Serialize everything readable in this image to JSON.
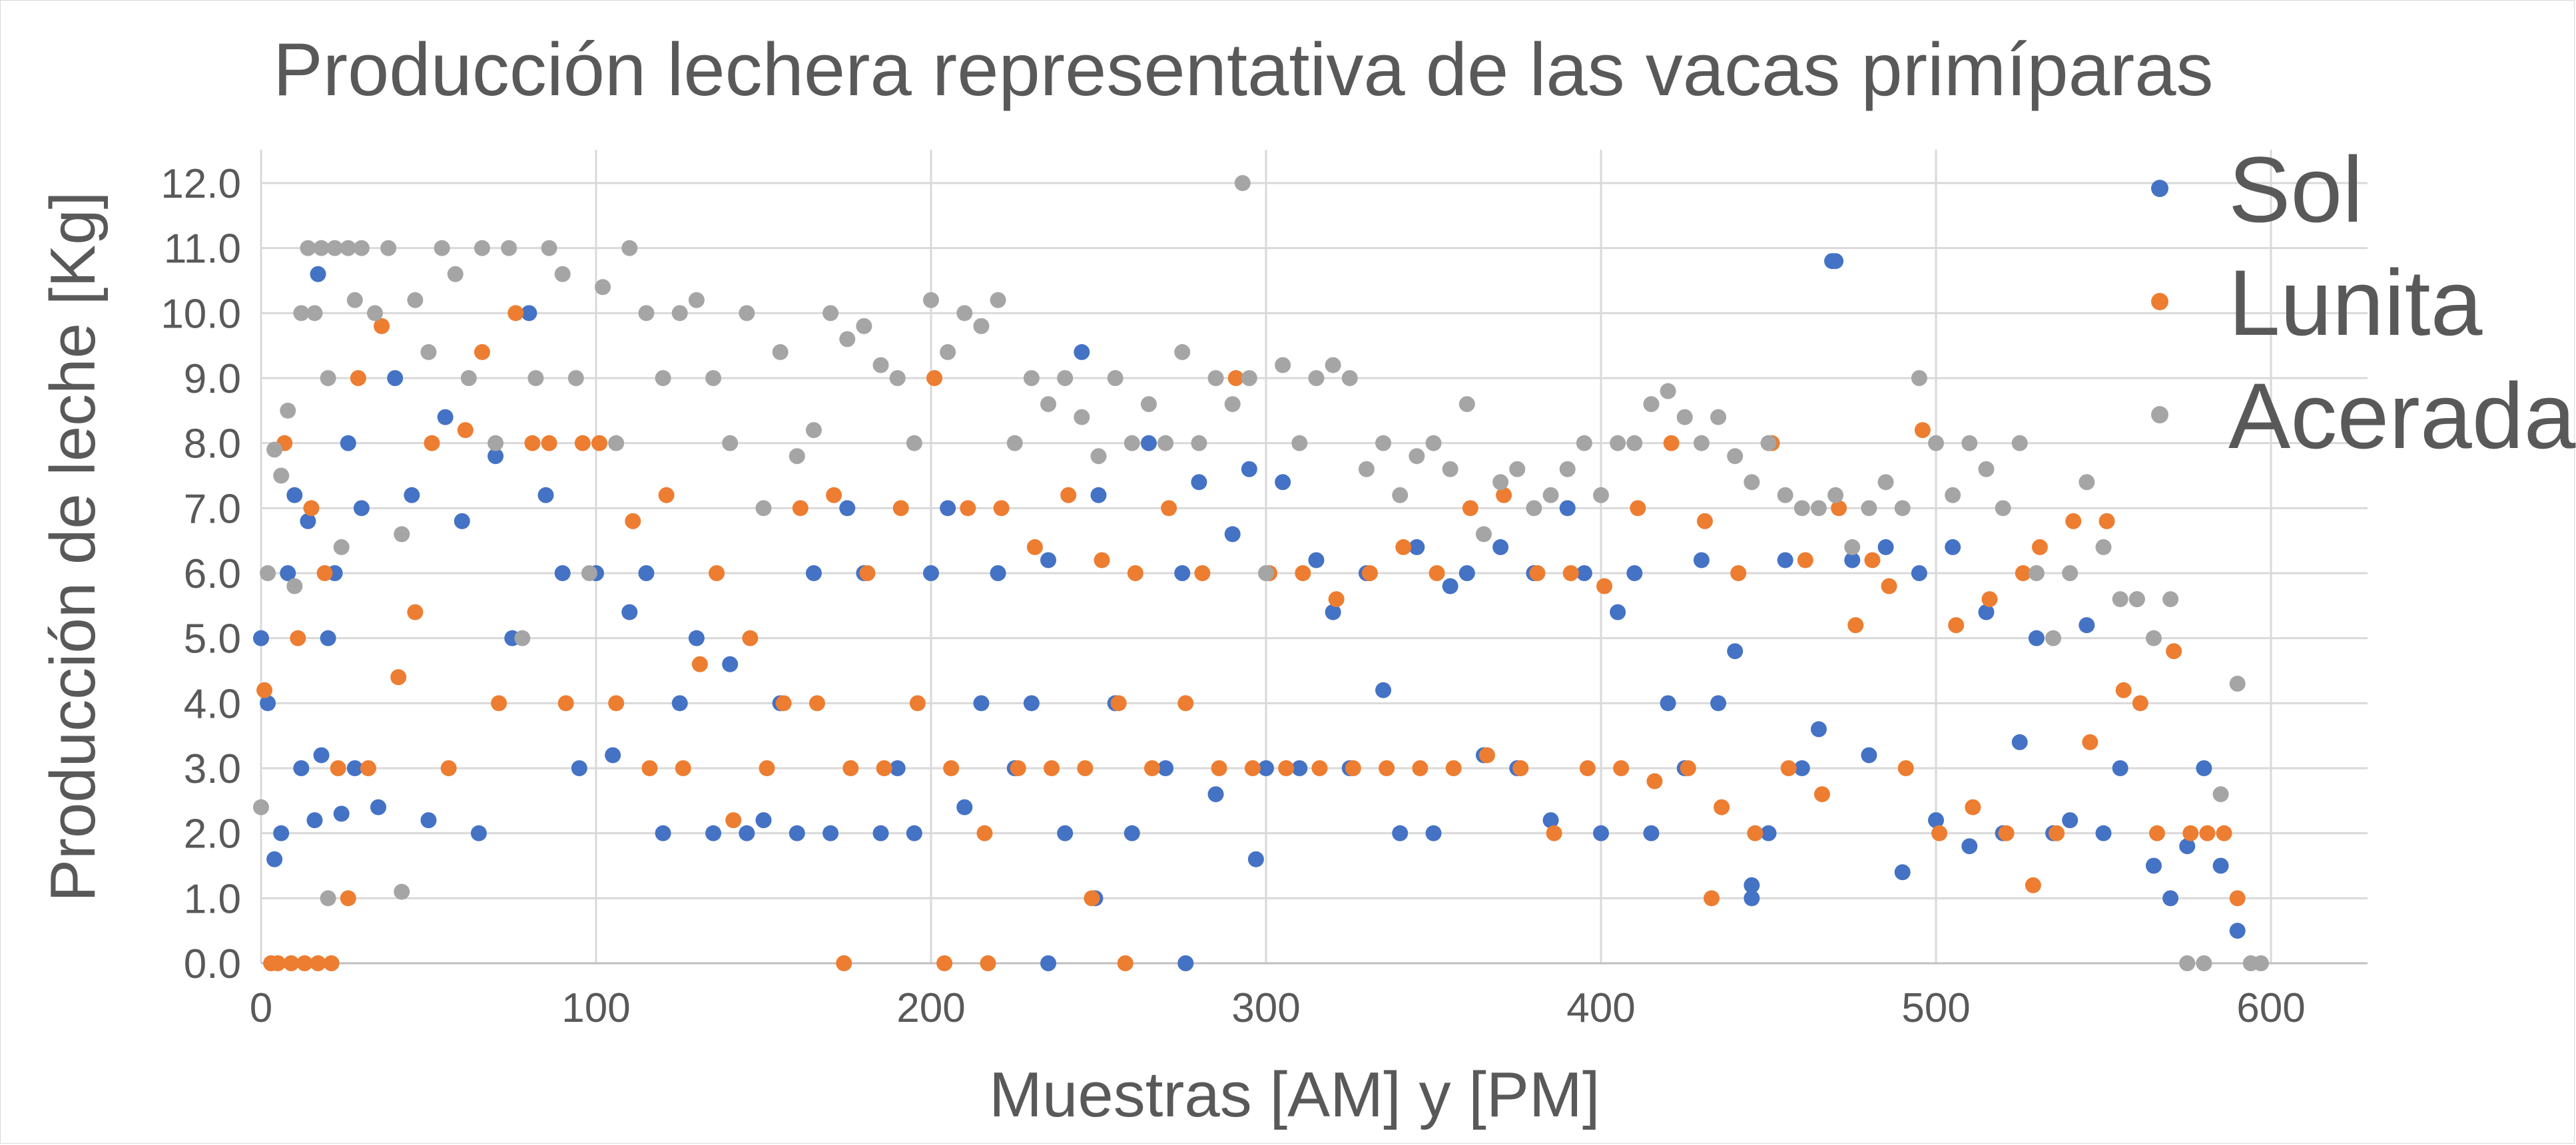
{
  "chart_data": {
    "type": "scatter",
    "title": "Producción lechera representativa de las vacas primíparas",
    "xlabel": "Muestras [AM] y [PM]",
    "ylabel": "Producción de leche [Kg]",
    "xlim": [
      0,
      600
    ],
    "ylim": [
      0,
      12
    ],
    "x_ticks": [
      "0",
      "100",
      "200",
      "300",
      "400",
      "500",
      "600"
    ],
    "y_ticks": [
      "0.0",
      "1.0",
      "2.0",
      "3.0",
      "4.0",
      "5.0",
      "6.0",
      "7.0",
      "8.0",
      "9.0",
      "10.0",
      "11.0",
      "12.0"
    ],
    "grid": true,
    "legend_position": "top-right",
    "series": [
      {
        "name": "Sol",
        "color": "#4472C4",
        "x": [
          0,
          2,
          4,
          6,
          8,
          10,
          12,
          14,
          16,
          18,
          20,
          22,
          24,
          26,
          28,
          30,
          35,
          40,
          45,
          50,
          55,
          60,
          65,
          70,
          75,
          80,
          85,
          90,
          95,
          100,
          105,
          110,
          115,
          120,
          125,
          130,
          135,
          140,
          145,
          150,
          155,
          160,
          165,
          170,
          175,
          180,
          185,
          190,
          195,
          200,
          205,
          210,
          215,
          220,
          225,
          230,
          235,
          240,
          245,
          250,
          255,
          260,
          265,
          270,
          275,
          280,
          285,
          290,
          295,
          300,
          305,
          310,
          315,
          320,
          325,
          330,
          335,
          340,
          345,
          350,
          355,
          360,
          365,
          370,
          375,
          380,
          385,
          390,
          395,
          400,
          405,
          410,
          415,
          420,
          425,
          430,
          435,
          440,
          445,
          450,
          455,
          460,
          465,
          470,
          475,
          480,
          485,
          490,
          495,
          500,
          505,
          510,
          515,
          520,
          525,
          530,
          535,
          540,
          545,
          550,
          555,
          560,
          565,
          570,
          575,
          580,
          585,
          590,
          17,
          469,
          249,
          297,
          235,
          276,
          445
        ],
        "y": [
          5.0,
          4.0,
          1.6,
          2.0,
          6.0,
          7.2,
          3.0,
          6.8,
          2.2,
          3.2,
          5.0,
          6.0,
          2.3,
          8.0,
          3.0,
          7.0,
          2.4,
          9.0,
          7.2,
          2.2,
          8.4,
          6.8,
          2.0,
          7.8,
          5.0,
          10.0,
          7.2,
          6.0,
          3.0,
          6.0,
          3.2,
          5.4,
          6.0,
          2.0,
          4.0,
          5.0,
          2.0,
          4.6,
          2.0,
          2.2,
          4.0,
          2.0,
          6.0,
          2.0,
          7.0,
          6.0,
          2.0,
          3.0,
          2.0,
          6.0,
          7.0,
          2.4,
          4.0,
          6.0,
          3.0,
          4.0,
          6.2,
          2.0,
          9.4,
          7.2,
          4.0,
          2.0,
          8.0,
          3.0,
          6.0,
          7.4,
          2.6,
          6.6,
          7.6,
          3.0,
          7.4,
          3.0,
          6.2,
          5.4,
          3.0,
          6.0,
          4.2,
          2.0,
          6.4,
          2.0,
          5.8,
          6.0,
          3.2,
          6.4,
          3.0,
          6.0,
          2.2,
          7.0,
          6.0,
          2.0,
          5.4,
          6.0,
          2.0,
          4.0,
          3.0,
          6.2,
          4.0,
          4.8,
          1.2,
          2.0,
          6.2,
          3.0,
          3.6,
          10.8,
          6.2,
          3.2,
          6.4,
          1.4,
          6.0,
          2.2,
          6.4,
          1.8,
          5.4,
          2.0,
          3.4,
          5.0,
          2.0,
          2.2,
          5.2,
          2.0,
          3.0,
          5.6,
          1.5,
          1.0,
          1.8,
          3.0,
          1.5,
          0.5,
          10.6,
          10.8,
          1.0,
          1.6,
          0.0,
          0.0,
          1.0
        ]
      },
      {
        "name": "Lunita",
        "color": "#ED7D31",
        "x": [
          1,
          3,
          5,
          7,
          9,
          11,
          13,
          15,
          17,
          19,
          21,
          23,
          26,
          29,
          32,
          36,
          41,
          46,
          51,
          56,
          61,
          66,
          71,
          76,
          81,
          86,
          91,
          96,
          101,
          106,
          111,
          116,
          121,
          126,
          131,
          136,
          141,
          146,
          151,
          156,
          161,
          166,
          171,
          176,
          181,
          186,
          191,
          196,
          201,
          206,
          211,
          216,
          221,
          226,
          231,
          236,
          241,
          246,
          251,
          256,
          261,
          266,
          271,
          276,
          281,
          286,
          291,
          296,
          301,
          306,
          311,
          316,
          321,
          326,
          331,
          336,
          341,
          346,
          351,
          356,
          361,
          366,
          371,
          376,
          381,
          386,
          391,
          396,
          401,
          406,
          411,
          416,
          421,
          426,
          431,
          436,
          441,
          446,
          451,
          456,
          461,
          466,
          471,
          476,
          481,
          486,
          491,
          496,
          501,
          506,
          511,
          516,
          521,
          526,
          531,
          536,
          541,
          546,
          551,
          556,
          561,
          566,
          571,
          576,
          581,
          586,
          590,
          174,
          204,
          217,
          258,
          248,
          433,
          529
        ],
        "y": [
          4.2,
          0.0,
          0.0,
          8.0,
          0.0,
          5.0,
          0.0,
          7.0,
          0.0,
          6.0,
          0.0,
          3.0,
          1.0,
          9.0,
          3.0,
          9.8,
          4.4,
          5.4,
          8.0,
          3.0,
          8.2,
          9.4,
          4.0,
          10.0,
          8.0,
          8.0,
          4.0,
          8.0,
          8.0,
          4.0,
          6.8,
          3.0,
          7.2,
          3.0,
          4.6,
          6.0,
          2.2,
          5.0,
          3.0,
          4.0,
          7.0,
          4.0,
          7.2,
          3.0,
          6.0,
          3.0,
          7.0,
          4.0,
          9.0,
          3.0,
          7.0,
          2.0,
          7.0,
          3.0,
          6.4,
          3.0,
          7.2,
          3.0,
          6.2,
          4.0,
          6.0,
          3.0,
          7.0,
          4.0,
          6.0,
          3.0,
          9.0,
          3.0,
          6.0,
          3.0,
          6.0,
          3.0,
          5.6,
          3.0,
          6.0,
          3.0,
          6.4,
          3.0,
          6.0,
          3.0,
          7.0,
          3.2,
          7.2,
          3.0,
          6.0,
          2.0,
          6.0,
          3.0,
          5.8,
          3.0,
          7.0,
          2.8,
          8.0,
          3.0,
          6.8,
          2.4,
          6.0,
          2.0,
          8.0,
          3.0,
          6.2,
          2.6,
          7.0,
          5.2,
          6.2,
          5.8,
          3.0,
          8.2,
          2.0,
          5.2,
          2.4,
          5.6,
          2.0,
          6.0,
          6.4,
          2.0,
          6.8,
          3.4,
          6.8,
          4.2,
          4.0,
          2.0,
          4.8,
          2.0,
          2.0,
          2.0,
          1.0,
          0.0,
          0.0,
          0.0,
          0.0,
          1.0,
          1.0,
          1.2
        ]
      },
      {
        "name": "Acerada",
        "color": "#A5A5A5",
        "x": [
          0,
          2,
          4,
          6,
          8,
          10,
          12,
          14,
          16,
          18,
          20,
          22,
          24,
          26,
          28,
          30,
          34,
          38,
          42,
          46,
          50,
          54,
          58,
          62,
          66,
          70,
          74,
          78,
          82,
          86,
          90,
          94,
          98,
          102,
          106,
          110,
          115,
          120,
          125,
          130,
          135,
          140,
          145,
          150,
          155,
          160,
          165,
          170,
          175,
          180,
          185,
          190,
          195,
          200,
          205,
          210,
          215,
          220,
          225,
          230,
          235,
          240,
          245,
          250,
          255,
          260,
          265,
          270,
          275,
          280,
          285,
          290,
          295,
          300,
          305,
          310,
          315,
          320,
          325,
          330,
          335,
          340,
          345,
          350,
          355,
          360,
          365,
          370,
          375,
          380,
          385,
          390,
          395,
          400,
          405,
          410,
          415,
          420,
          425,
          430,
          435,
          440,
          445,
          450,
          455,
          460,
          465,
          470,
          475,
          480,
          485,
          490,
          495,
          500,
          505,
          510,
          515,
          520,
          525,
          530,
          535,
          540,
          545,
          550,
          555,
          560,
          565,
          570,
          575,
          580,
          585,
          590,
          594,
          597,
          293,
          42,
          20
        ],
        "y": [
          2.4,
          6.0,
          7.9,
          7.5,
          8.5,
          5.8,
          10.0,
          11.0,
          10.0,
          11.0,
          9.0,
          11.0,
          6.4,
          11.0,
          10.2,
          11.0,
          10.0,
          11.0,
          6.6,
          10.2,
          9.4,
          11.0,
          10.6,
          9.0,
          11.0,
          8.0,
          11.0,
          5.0,
          9.0,
          11.0,
          10.6,
          9.0,
          6.0,
          10.4,
          8.0,
          11.0,
          10.0,
          9.0,
          10.0,
          10.2,
          9.0,
          8.0,
          10.0,
          7.0,
          9.4,
          7.8,
          8.2,
          10.0,
          9.6,
          9.8,
          9.2,
          9.0,
          8.0,
          10.2,
          9.4,
          10.0,
          9.8,
          10.2,
          8.0,
          9.0,
          8.6,
          9.0,
          8.4,
          7.8,
          9.0,
          8.0,
          8.6,
          8.0,
          9.4,
          8.0,
          9.0,
          8.6,
          9.0,
          6.0,
          9.2,
          8.0,
          9.0,
          9.2,
          9.0,
          7.6,
          8.0,
          7.2,
          7.8,
          8.0,
          7.6,
          8.6,
          6.6,
          7.4,
          7.6,
          7.0,
          7.2,
          7.6,
          8.0,
          7.2,
          8.0,
          8.0,
          8.6,
          8.8,
          8.4,
          8.0,
          8.4,
          7.8,
          7.4,
          8.0,
          7.2,
          7.0,
          7.0,
          7.2,
          6.4,
          7.0,
          7.4,
          7.0,
          9.0,
          8.0,
          7.2,
          8.0,
          7.6,
          7.0,
          8.0,
          6.0,
          5.0,
          6.0,
          7.4,
          6.4,
          5.6,
          5.6,
          5.0,
          5.6,
          0.0,
          0.0,
          2.6,
          4.3,
          0.0,
          0.0,
          12.0,
          1.1,
          1.0
        ]
      }
    ]
  }
}
